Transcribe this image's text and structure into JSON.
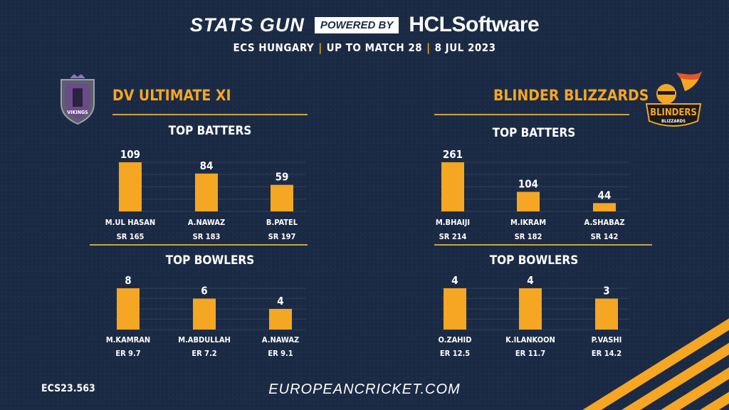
{
  "header": {
    "brand": "STATS GUN",
    "powered_by": "POWERED BY",
    "sponsor_prefix": "HCL",
    "sponsor_suffix": "Software",
    "subtitle_parts": [
      "ECS HUNGARY",
      "UP TO MATCH 28",
      "8 JUL 2023"
    ]
  },
  "left_team": {
    "name": "DV ULTIMATE XI",
    "logo_text": "VIKINGS"
  },
  "right_team": {
    "name": "BLINDER BLIZZARDS",
    "logo_text": "BLINDERS",
    "logo_subtext": "BLIZZARDS"
  },
  "colors": {
    "bar": "#f5a623",
    "background": "#1b2a44",
    "accent_rule": "#c9a24a"
  },
  "footer": {
    "code": "ECS23.563",
    "website": "EUROPEANCRICKET.COM"
  },
  "chart_data": [
    {
      "type": "bar",
      "team": "DV ULTIMATE XI",
      "title": "TOP BATTERS",
      "categories": [
        "M.UL HASAN",
        "A.NAWAZ",
        "B.PATEL"
      ],
      "values": [
        109,
        84,
        59
      ],
      "secondary_labels": [
        "SR 165",
        "SR 183",
        "SR 197"
      ]
    },
    {
      "type": "bar",
      "team": "BLINDER BLIZZARDS",
      "title": "TOP BATTERS",
      "categories": [
        "M.BHAIJI",
        "M.IKRAM",
        "A.SHABAZ"
      ],
      "values": [
        261,
        104,
        44
      ],
      "secondary_labels": [
        "SR 214",
        "SR 182",
        "SR 142"
      ]
    },
    {
      "type": "bar",
      "team": "DV ULTIMATE XI",
      "title": "TOP BOWLERS",
      "categories": [
        "M.KAMRAN",
        "M.ABDULLAH",
        "A.NAWAZ"
      ],
      "values": [
        8,
        6,
        4
      ],
      "secondary_labels": [
        "ER 9.7",
        "ER 7.2",
        "ER 9.1"
      ]
    },
    {
      "type": "bar",
      "team": "BLINDER BLIZZARDS",
      "title": "TOP BOWLERS",
      "categories": [
        "O.ZAHID",
        "K.ILANKOON",
        "P.VASHI"
      ],
      "values": [
        4,
        4,
        3
      ],
      "secondary_labels": [
        "ER 12.5",
        "ER 11.7",
        "ER 14.2"
      ]
    }
  ]
}
